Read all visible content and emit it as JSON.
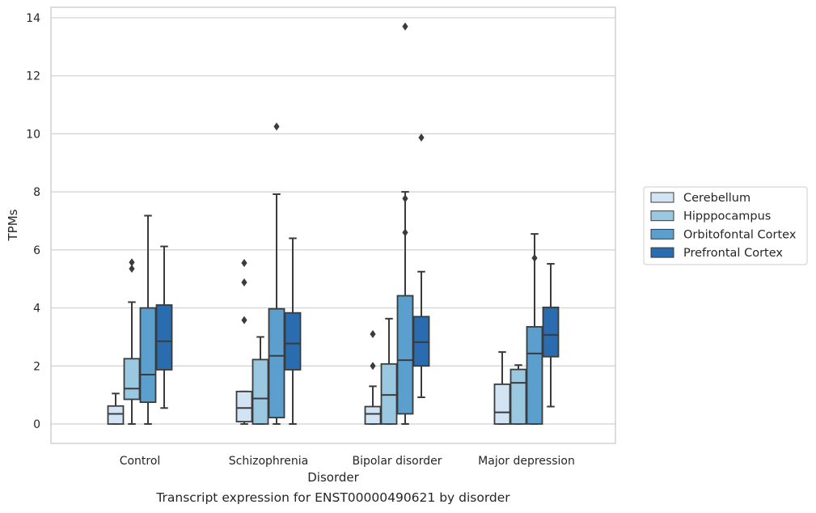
{
  "caption": "Transcript expression for ENST00000490621 by disorder",
  "chart_data": {
    "type": "boxplot",
    "xlabel": "Disorder",
    "ylabel": "TPMs",
    "ylim": [
      -0.65,
      14.4
    ],
    "yticks": [
      0,
      2,
      4,
      6,
      8,
      10,
      12,
      14
    ],
    "grid": true,
    "legend_placement": "right",
    "categories": [
      "Control",
      "Schizophrenia",
      "Bipolar disorder",
      "Major depression"
    ],
    "series": [
      {
        "name": "Cerebellum",
        "color": "#d2e3f3",
        "boxes": [
          {
            "whislo": 0.0,
            "q1": 0.0,
            "med": 0.35,
            "q3": 0.62,
            "whishi": 1.05,
            "fliers": []
          },
          {
            "whislo": 0.0,
            "q1": 0.08,
            "med": 0.55,
            "q3": 1.12,
            "whishi": 1.12,
            "fliers": [
              3.58,
              4.88,
              5.55
            ]
          },
          {
            "whislo": 0.0,
            "q1": 0.0,
            "med": 0.35,
            "q3": 0.6,
            "whishi": 1.3,
            "fliers": [
              2.0,
              3.1
            ]
          },
          {
            "whislo": 0.0,
            "q1": 0.0,
            "med": 0.4,
            "q3": 1.37,
            "whishi": 2.48,
            "fliers": []
          }
        ]
      },
      {
        "name": "Hipppocampus",
        "color": "#9ac8e0",
        "boxes": [
          {
            "whislo": 0.0,
            "q1": 0.85,
            "med": 1.22,
            "q3": 2.25,
            "whishi": 4.2,
            "fliers": [
              5.35,
              5.57
            ]
          },
          {
            "whislo": 0.0,
            "q1": 0.0,
            "med": 0.88,
            "q3": 2.22,
            "whishi": 3.0,
            "fliers": []
          },
          {
            "whislo": 0.0,
            "q1": 0.0,
            "med": 1.0,
            "q3": 2.07,
            "whishi": 3.63,
            "fliers": []
          },
          {
            "whislo": 0.0,
            "q1": 0.0,
            "med": 1.42,
            "q3": 1.88,
            "whishi": 2.03,
            "fliers": []
          }
        ]
      },
      {
        "name": "Orbitofontal Cortex",
        "color": "#5a9fcd",
        "boxes": [
          {
            "whislo": 0.0,
            "q1": 0.75,
            "med": 1.7,
            "q3": 4.0,
            "whishi": 7.18,
            "fliers": []
          },
          {
            "whislo": 0.0,
            "q1": 0.22,
            "med": 2.35,
            "q3": 3.97,
            "whishi": 7.92,
            "fliers": [
              10.25
            ]
          },
          {
            "whislo": 0.0,
            "q1": 0.35,
            "med": 2.2,
            "q3": 4.42,
            "whishi": 8.0,
            "fliers": [
              6.6,
              7.77,
              13.7
            ]
          },
          {
            "whislo": 0.0,
            "q1": 0.0,
            "med": 2.43,
            "q3": 3.35,
            "whishi": 6.55,
            "fliers": [
              5.72
            ]
          }
        ]
      },
      {
        "name": "Prefrontal Cortex",
        "color": "#2a6cb0",
        "boxes": [
          {
            "whislo": 0.55,
            "q1": 1.87,
            "med": 2.85,
            "q3": 4.1,
            "whishi": 6.12,
            "fliers": []
          },
          {
            "whislo": 0.0,
            "q1": 1.87,
            "med": 2.77,
            "q3": 3.83,
            "whishi": 6.4,
            "fliers": []
          },
          {
            "whislo": 0.92,
            "q1": 2.0,
            "med": 2.82,
            "q3": 3.7,
            "whishi": 5.25,
            "fliers": [
              9.87
            ]
          },
          {
            "whislo": 0.6,
            "q1": 2.32,
            "med": 3.07,
            "q3": 4.02,
            "whishi": 5.52,
            "fliers": []
          }
        ]
      }
    ]
  }
}
